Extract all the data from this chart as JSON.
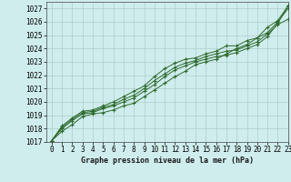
{
  "xlabel": "Graphe pression niveau de la mer (hPa)",
  "ylim": [
    1017,
    1027.5
  ],
  "xlim": [
    -0.5,
    23
  ],
  "yticks": [
    1017,
    1018,
    1019,
    1020,
    1021,
    1022,
    1023,
    1024,
    1025,
    1026,
    1027
  ],
  "xticks": [
    0,
    1,
    2,
    3,
    4,
    5,
    6,
    7,
    8,
    9,
    10,
    11,
    12,
    13,
    14,
    15,
    16,
    17,
    18,
    19,
    20,
    21,
    22,
    23
  ],
  "bg_color": "#d0eded",
  "line_color": "#2d6a2d",
  "grid_color": "#b0cccc",
  "series": [
    [
      1017.1,
      1017.8,
      1018.3,
      1018.9,
      1019.1,
      1019.2,
      1019.4,
      1019.7,
      1019.9,
      1020.4,
      1020.9,
      1021.4,
      1021.9,
      1022.3,
      1022.8,
      1023.0,
      1023.2,
      1023.6,
      1024.0,
      1024.3,
      1024.8,
      1025.6,
      1026.1,
      1027.2
    ],
    [
      1017.1,
      1018.0,
      1018.6,
      1019.1,
      1019.2,
      1019.5,
      1019.7,
      1020.0,
      1020.3,
      1020.8,
      1021.3,
      1021.9,
      1022.4,
      1022.7,
      1023.0,
      1023.2,
      1023.4,
      1023.5,
      1023.7,
      1024.0,
      1024.3,
      1024.9,
      1025.9,
      1027.2
    ],
    [
      1017.1,
      1018.1,
      1018.7,
      1019.2,
      1019.3,
      1019.6,
      1019.8,
      1020.2,
      1020.5,
      1021.0,
      1021.6,
      1022.1,
      1022.6,
      1022.9,
      1023.1,
      1023.4,
      1023.6,
      1023.8,
      1023.9,
      1024.2,
      1024.5,
      1025.1,
      1025.8,
      1026.2
    ],
    [
      1017.1,
      1018.2,
      1018.8,
      1019.3,
      1019.4,
      1019.7,
      1020.0,
      1020.4,
      1020.8,
      1021.2,
      1021.9,
      1022.5,
      1022.9,
      1023.2,
      1023.3,
      1023.6,
      1023.8,
      1024.2,
      1024.2,
      1024.6,
      1024.8,
      1025.2,
      1026.0,
      1027.0
    ]
  ],
  "xlabel_fontsize": 6.0,
  "tick_fontsize": 5.5
}
